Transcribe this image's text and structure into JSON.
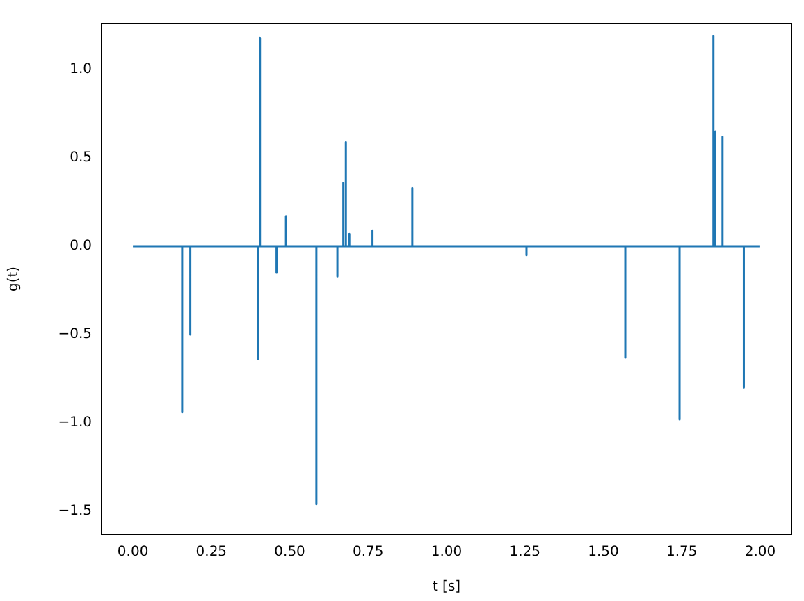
{
  "chart_data": {
    "type": "line",
    "xlabel": "t [s]",
    "ylabel": "g(t)",
    "series": [
      {
        "color": "#1f77b4",
        "x": [
          0,
          0.157,
          0.157,
          0.157,
          0.183,
          0.183,
          0.183,
          0.4,
          0.4,
          0.4,
          0.405,
          0.405,
          0.405,
          0.458,
          0.458,
          0.458,
          0.488,
          0.488,
          0.488,
          0.585,
          0.585,
          0.585,
          0.652,
          0.652,
          0.652,
          0.671,
          0.671,
          0.671,
          0.679,
          0.679,
          0.679,
          0.69,
          0.69,
          0.69,
          0.764,
          0.764,
          0.764,
          0.891,
          0.891,
          0.891,
          1.255,
          1.255,
          1.255,
          1.57,
          1.57,
          1.57,
          1.743,
          1.743,
          1.743,
          1.851,
          1.851,
          1.851,
          1.857,
          1.857,
          1.857,
          1.88,
          1.88,
          1.88,
          1.948,
          1.948,
          1.948,
          2
        ],
        "values": [
          0,
          0,
          -0.94,
          0,
          0,
          -0.5,
          0,
          0,
          -0.64,
          0,
          0,
          1.18,
          0,
          0,
          -0.15,
          0,
          0,
          0.17,
          0,
          0,
          -1.46,
          0,
          0,
          -0.17,
          0,
          0,
          0.36,
          0,
          0,
          0.59,
          0,
          0,
          0.07,
          0,
          0,
          0.09,
          0,
          0,
          0.33,
          0,
          0,
          -0.05,
          0,
          0,
          -0.63,
          0,
          0,
          -0.98,
          0,
          0,
          1.19,
          0,
          0,
          0.65,
          0,
          0,
          0.62,
          0,
          0,
          -0.8,
          0,
          0
        ]
      }
    ],
    "xlim": [
      -0.1,
      2.1
    ],
    "ylim": [
      -1.63,
      1.26
    ],
    "xticks": [
      {
        "value": 0,
        "label": "0.00"
      },
      {
        "value": 0.25,
        "label": "0.25"
      },
      {
        "value": 0.5,
        "label": "0.50"
      },
      {
        "value": 0.75,
        "label": "0.75"
      },
      {
        "value": 1,
        "label": "1.00"
      },
      {
        "value": 1.25,
        "label": "1.25"
      },
      {
        "value": 1.5,
        "label": "1.50"
      },
      {
        "value": 1.75,
        "label": "1.75"
      },
      {
        "value": 2,
        "label": "2.00"
      }
    ],
    "yticks": [
      {
        "value": -1.5,
        "label": "−1.5"
      },
      {
        "value": -1,
        "label": "−1.0"
      },
      {
        "value": -0.5,
        "label": "−0.5"
      },
      {
        "value": 0,
        "label": "0.0"
      },
      {
        "value": 0.5,
        "label": "0.5"
      },
      {
        "value": 1,
        "label": "1.0"
      }
    ],
    "grid": false,
    "legend": false,
    "marker": "none",
    "line_style": "solid"
  }
}
